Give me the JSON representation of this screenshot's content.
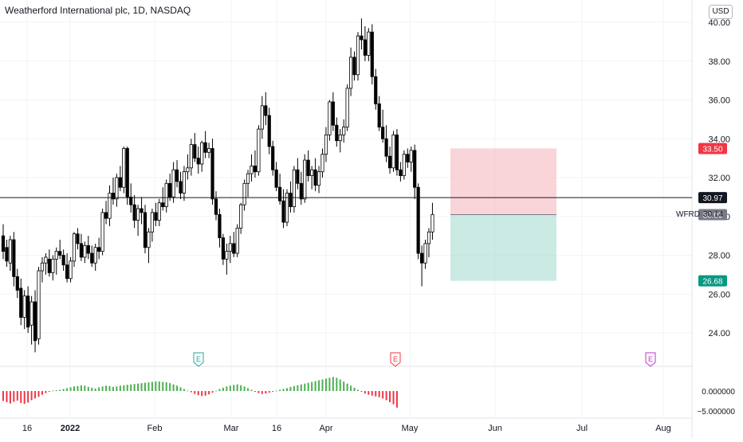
{
  "window": {
    "title": "Weatherford International plc, 1D, NASDAQ",
    "currency": "USD"
  },
  "colors": {
    "up_candle": "#ffffff",
    "down_candle": "#000000",
    "wick": "#000000",
    "stop_zone": "#f7c6cb",
    "target_zone": "#b8e3d9",
    "stop_label": "#f23645",
    "target_label": "#089981",
    "current_label": "#131722",
    "last_price_label": "#787b86",
    "osc_pos": "#4caf50",
    "osc_neg": "#f23645",
    "earnings_green": "#26a69a",
    "earnings_red": "#f23645",
    "earnings_purple": "#c233cc"
  },
  "price_axis": {
    "ticks": [
      "40.00",
      "38.00",
      "36.00",
      "34.00",
      "32.00",
      "30.00",
      "28.00",
      "26.00",
      "24.00"
    ]
  },
  "osc_axis": {
    "ticks": [
      "0.000000",
      "−5.000000"
    ]
  },
  "time_axis": {
    "labels": [
      "16",
      "2022",
      "Feb",
      "Mar",
      "16",
      "Apr",
      "May",
      "Jun",
      "Jul",
      "Aug"
    ]
  },
  "labels": {
    "stop": "33.50",
    "current": "30.97",
    "symbol": "WFRD",
    "symbol_price": "30.14",
    "last": "30.09",
    "target": "26.68"
  },
  "earnings_markers": [
    {
      "text": "E",
      "color_key": "earnings_green"
    },
    {
      "text": "E",
      "color_key": "earnings_red"
    },
    {
      "text": "E",
      "color_key": "earnings_purple"
    }
  ],
  "chart_data": {
    "type": "candlestick",
    "title": "Weatherford International plc, 1D, NASDAQ",
    "y_unit": "USD",
    "ylim": [
      22.5,
      41.0
    ],
    "grid": true,
    "horizontal_line": 30.97,
    "risk_reward": {
      "stop": 33.5,
      "entry": 30.09,
      "target": 26.68
    },
    "series": [
      {
        "name": "WFRD",
        "type": "candlestick",
        "ohlc": [
          [
            29.0,
            29.6,
            27.8,
            28.2
          ],
          [
            28.4,
            28.8,
            27.4,
            27.7
          ],
          [
            27.6,
            29.0,
            27.2,
            28.8
          ],
          [
            28.8,
            29.2,
            26.4,
            26.9
          ],
          [
            26.9,
            27.3,
            25.8,
            26.2
          ],
          [
            26.3,
            26.8,
            24.4,
            24.8
          ],
          [
            24.8,
            26.2,
            24.2,
            25.9
          ],
          [
            25.9,
            26.4,
            24.0,
            24.3
          ],
          [
            24.4,
            25.9,
            23.4,
            25.6
          ],
          [
            25.6,
            26.2,
            23.0,
            23.6
          ],
          [
            23.7,
            27.4,
            23.4,
            27.2
          ],
          [
            27.2,
            27.9,
            26.6,
            27.6
          ],
          [
            27.6,
            28.1,
            27.0,
            27.9
          ],
          [
            27.8,
            28.3,
            26.9,
            27.1
          ],
          [
            27.1,
            28.0,
            26.7,
            27.8
          ],
          [
            27.8,
            28.4,
            27.0,
            28.2
          ],
          [
            28.2,
            28.8,
            27.8,
            28.0
          ],
          [
            28.0,
            28.3,
            27.2,
            27.5
          ],
          [
            27.5,
            28.1,
            26.6,
            26.8
          ],
          [
            26.8,
            27.9,
            26.6,
            27.7
          ],
          [
            27.7,
            29.2,
            27.4,
            29.1
          ],
          [
            29.1,
            29.4,
            28.3,
            28.6
          ],
          [
            28.6,
            29.1,
            27.7,
            27.9
          ],
          [
            27.9,
            28.7,
            27.6,
            28.5
          ],
          [
            28.5,
            29.0,
            27.8,
            28.1
          ],
          [
            28.1,
            28.5,
            27.4,
            27.6
          ],
          [
            27.6,
            28.6,
            27.2,
            28.4
          ],
          [
            28.4,
            28.9,
            27.8,
            28.2
          ],
          [
            28.2,
            30.4,
            28.0,
            30.2
          ],
          [
            30.2,
            30.8,
            29.6,
            29.9
          ],
          [
            29.9,
            31.6,
            29.5,
            31.2
          ],
          [
            31.2,
            32.0,
            30.6,
            30.9
          ],
          [
            30.9,
            32.2,
            30.5,
            32.0
          ],
          [
            32.0,
            32.6,
            31.3,
            31.5
          ],
          [
            31.5,
            33.6,
            31.2,
            33.5
          ],
          [
            33.5,
            33.6,
            30.6,
            31.0
          ],
          [
            31.0,
            31.7,
            30.2,
            30.6
          ],
          [
            30.6,
            31.1,
            29.4,
            29.8
          ],
          [
            29.8,
            30.6,
            29.0,
            30.4
          ],
          [
            30.4,
            31.0,
            29.6,
            30.2
          ],
          [
            30.2,
            30.6,
            28.1,
            28.4
          ],
          [
            28.4,
            29.4,
            27.6,
            29.2
          ],
          [
            29.2,
            30.4,
            28.7,
            30.2
          ],
          [
            30.2,
            30.7,
            29.5,
            29.8
          ],
          [
            29.8,
            30.9,
            29.5,
            30.7
          ],
          [
            30.7,
            31.5,
            30.3,
            30.5
          ],
          [
            30.5,
            31.9,
            30.2,
            31.7
          ],
          [
            31.7,
            32.2,
            30.8,
            31.0
          ],
          [
            31.0,
            32.8,
            30.7,
            32.4
          ],
          [
            32.4,
            32.9,
            31.5,
            31.8
          ],
          [
            31.8,
            32.3,
            30.9,
            31.2
          ],
          [
            31.2,
            32.6,
            30.8,
            32.3
          ],
          [
            32.3,
            33.2,
            31.9,
            32.5
          ],
          [
            32.5,
            34.0,
            32.1,
            33.7
          ],
          [
            33.7,
            34.3,
            32.8,
            33.0
          ],
          [
            33.0,
            33.6,
            32.2,
            32.7
          ],
          [
            32.7,
            33.9,
            32.3,
            33.8
          ],
          [
            33.8,
            34.4,
            33.0,
            33.3
          ],
          [
            33.3,
            33.8,
            33.0,
            33.5
          ],
          [
            33.5,
            34.0,
            30.6,
            30.9
          ],
          [
            30.9,
            31.3,
            29.8,
            30.1
          ],
          [
            30.1,
            30.4,
            28.4,
            28.9
          ],
          [
            28.9,
            29.1,
            27.5,
            27.8
          ],
          [
            27.8,
            28.6,
            27.0,
            28.2
          ],
          [
            28.2,
            29.0,
            27.6,
            28.6
          ],
          [
            28.6,
            29.2,
            27.9,
            28.1
          ],
          [
            28.1,
            29.6,
            27.9,
            29.4
          ],
          [
            29.4,
            30.7,
            29.1,
            30.6
          ],
          [
            30.6,
            31.9,
            30.3,
            31.7
          ],
          [
            31.7,
            32.4,
            31.0,
            32.2
          ],
          [
            32.2,
            33.2,
            31.8,
            32.6
          ],
          [
            32.6,
            33.4,
            32.0,
            32.3
          ],
          [
            32.3,
            34.7,
            32.1,
            34.5
          ],
          [
            34.5,
            36.2,
            34.0,
            35.7
          ],
          [
            35.7,
            36.4,
            34.7,
            35.2
          ],
          [
            35.2,
            35.6,
            33.2,
            33.6
          ],
          [
            33.6,
            33.9,
            32.1,
            32.4
          ],
          [
            32.4,
            32.8,
            31.3,
            31.5
          ],
          [
            31.5,
            32.2,
            30.6,
            30.8
          ],
          [
            30.8,
            31.4,
            29.4,
            29.7
          ],
          [
            29.7,
            31.4,
            29.5,
            31.2
          ],
          [
            31.2,
            31.8,
            30.2,
            30.5
          ],
          [
            30.5,
            32.6,
            30.2,
            32.4
          ],
          [
            32.4,
            33.0,
            31.4,
            31.7
          ],
          [
            31.7,
            32.3,
            30.6,
            30.9
          ],
          [
            30.9,
            33.2,
            30.7,
            32.9
          ],
          [
            32.9,
            33.4,
            31.8,
            32.1
          ],
          [
            32.1,
            32.6,
            31.4,
            32.4
          ],
          [
            32.4,
            33.0,
            31.3,
            31.6
          ],
          [
            31.6,
            32.6,
            31.2,
            32.3
          ],
          [
            32.3,
            33.5,
            32.0,
            33.2
          ],
          [
            33.2,
            34.6,
            32.8,
            34.2
          ],
          [
            34.2,
            36.0,
            33.9,
            35.9
          ],
          [
            35.9,
            36.4,
            34.4,
            34.7
          ],
          [
            34.7,
            35.1,
            33.6,
            33.9
          ],
          [
            33.9,
            34.5,
            33.3,
            34.2
          ],
          [
            34.2,
            35.0,
            33.8,
            34.6
          ],
          [
            34.6,
            36.8,
            34.4,
            36.6
          ],
          [
            36.6,
            38.7,
            36.2,
            38.2
          ],
          [
            38.2,
            38.5,
            37.0,
            37.3
          ],
          [
            37.3,
            39.5,
            37.0,
            39.3
          ],
          [
            39.3,
            40.2,
            38.6,
            39.1
          ],
          [
            39.1,
            39.8,
            38.0,
            38.3
          ],
          [
            38.3,
            39.7,
            38.0,
            39.5
          ],
          [
            39.5,
            39.9,
            36.8,
            37.2
          ],
          [
            37.2,
            37.6,
            35.5,
            35.8
          ],
          [
            35.8,
            36.2,
            34.4,
            34.6
          ],
          [
            34.6,
            35.5,
            33.8,
            34.0
          ],
          [
            34.0,
            34.7,
            32.8,
            33.1
          ],
          [
            33.1,
            33.6,
            32.2,
            32.5
          ],
          [
            32.5,
            34.4,
            32.3,
            34.2
          ],
          [
            34.2,
            34.5,
            32.1,
            32.4
          ],
          [
            32.4,
            32.8,
            31.8,
            32.1
          ],
          [
            32.1,
            33.4,
            31.9,
            33.2
          ],
          [
            33.2,
            33.5,
            32.5,
            32.8
          ],
          [
            32.8,
            33.6,
            32.3,
            33.4
          ],
          [
            33.4,
            33.7,
            30.9,
            31.5
          ],
          [
            31.5,
            31.7,
            27.8,
            28.1
          ],
          [
            28.1,
            28.5,
            26.4,
            27.6
          ],
          [
            27.6,
            28.8,
            27.3,
            28.6
          ],
          [
            28.6,
            29.4,
            27.9,
            29.2
          ],
          [
            29.2,
            30.7,
            28.8,
            30.1
          ]
        ]
      },
      {
        "name": "Oscillator",
        "type": "histogram",
        "values": [
          -2.4,
          -2.7,
          -3.0,
          -2.6,
          -2.3,
          -2.9,
          -3.1,
          -2.8,
          -2.2,
          -1.8,
          -1.4,
          -0.9,
          -0.5,
          -0.2,
          0.1,
          0.2,
          0.3,
          0.5,
          0.7,
          0.9,
          1.1,
          1.2,
          1.4,
          1.3,
          1.0,
          0.8,
          0.6,
          0.9,
          1.1,
          1.3,
          1.2,
          1.0,
          1.1,
          1.3,
          1.4,
          1.5,
          1.6,
          1.7,
          1.8,
          1.9,
          2.0,
          2.1,
          2.2,
          2.3,
          2.3,
          2.2,
          2.1,
          1.9,
          1.6,
          1.3,
          0.9,
          0.5,
          0.1,
          -0.3,
          -0.7,
          -1.0,
          -1.2,
          -1.1,
          -0.8,
          -0.4,
          0.1,
          0.5,
          0.8,
          1.1,
          1.3,
          1.5,
          1.6,
          1.4,
          1.1,
          0.7,
          0.3,
          -0.2,
          -0.5,
          -0.7,
          -0.6,
          -0.4,
          -0.2,
          0.1,
          0.3,
          0.5,
          0.7,
          1.0,
          1.2,
          1.4,
          1.6,
          1.8,
          2.0,
          2.2,
          2.4,
          2.6,
          2.8,
          3.0,
          3.2,
          3.4,
          3.2,
          2.8,
          2.3,
          1.8,
          1.3,
          0.8,
          0.3,
          -0.2,
          -0.6,
          -0.9,
          -1.1,
          -1.3,
          -1.5,
          -1.8,
          -2.2,
          -2.7,
          -3.2,
          -4.0
        ]
      }
    ]
  }
}
